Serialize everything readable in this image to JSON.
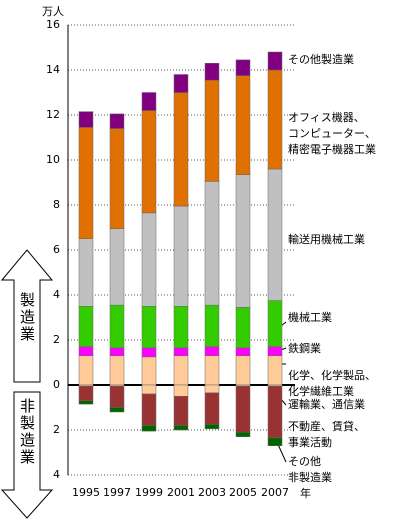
{
  "chart_data": {
    "type": "bar",
    "stacked": true,
    "y_unit_label": "万人",
    "x_unit_label": "年",
    "side_labels": [
      "製造業",
      "非製造業"
    ],
    "categories": [
      "1995",
      "1997",
      "1999",
      "2001",
      "2003",
      "2005",
      "2007"
    ],
    "series": [
      {
        "name": "化学、化学製品、\n化学繊維工業",
        "color": "#ffcc99",
        "values": [
          1.3,
          1.3,
          1.25,
          1.3,
          1.3,
          1.3,
          1.3
        ]
      },
      {
        "name": "鉄鋼業",
        "color": "#ff00ff",
        "values": [
          0.4,
          0.35,
          0.4,
          0.35,
          0.4,
          0.35,
          0.4
        ]
      },
      {
        "name": "機械工業",
        "color": "#33cc00",
        "values": [
          1.8,
          1.9,
          1.85,
          1.85,
          1.85,
          1.8,
          2.05
        ]
      },
      {
        "name": "輸送用機械工業",
        "color": "#c0c0c0",
        "values": [
          3.0,
          3.4,
          4.15,
          4.45,
          5.5,
          5.9,
          5.85
        ]
      },
      {
        "name": "オフィス機器、\nコンピューター、\n精密電子機器工業",
        "color": "#e07000",
        "values": [
          4.95,
          4.45,
          4.55,
          5.05,
          4.5,
          4.4,
          4.4
        ]
      },
      {
        "name": "その他製造業",
        "color": "#800080",
        "values": [
          0.7,
          0.65,
          0.8,
          0.8,
          0.75,
          0.7,
          0.8
        ]
      },
      {
        "name": "運輸業、通信業",
        "color": "#ffcc99",
        "values": [
          -0.05,
          -0.05,
          -0.4,
          -0.5,
          -0.35,
          -0.05,
          -0.05
        ]
      },
      {
        "name": "不動産、賃貸、\n事業活動",
        "color": "#993333",
        "values": [
          -0.65,
          -0.95,
          -1.4,
          -1.3,
          -1.4,
          -2.05,
          -2.3
        ]
      },
      {
        "name": "その他\n非製造業",
        "color": "#006600",
        "values": [
          -0.15,
          -0.2,
          -0.25,
          -0.2,
          -0.2,
          -0.2,
          -0.35
        ]
      }
    ],
    "ylim": [
      -4,
      16
    ],
    "yticks": [
      {
        "value": -4,
        "label": "4"
      },
      {
        "value": -2,
        "label": "2"
      },
      0,
      2,
      4,
      6,
      8,
      10,
      12,
      14,
      16
    ],
    "grid": true
  }
}
